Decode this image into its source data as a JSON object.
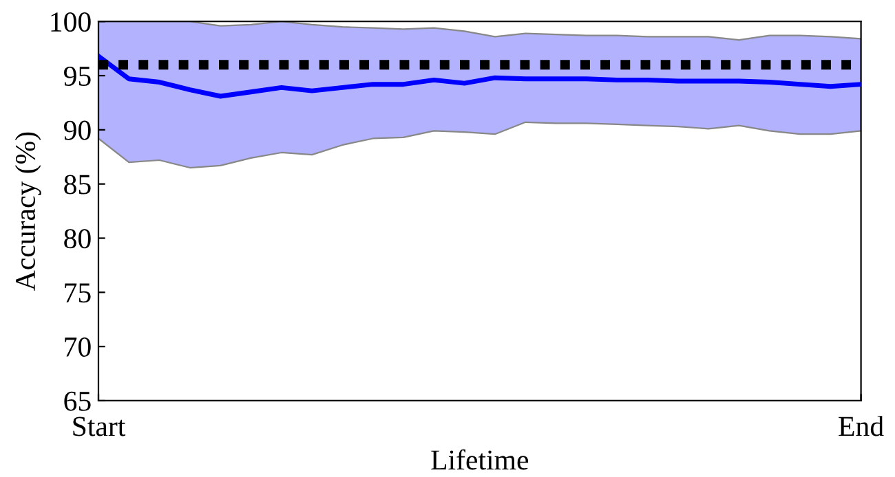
{
  "chart_data": {
    "type": "line",
    "xlabel": "Lifetime",
    "ylabel": "Accuracy (%)",
    "categories": [
      "Start",
      null,
      null,
      null,
      null,
      null,
      null,
      null,
      null,
      null,
      null,
      null,
      null,
      null,
      null,
      null,
      null,
      null,
      null,
      null,
      null,
      null,
      null,
      null,
      null,
      "End"
    ],
    "series": [
      {
        "color": "#0000ff",
        "values": [
          96.8,
          94.7,
          94.4,
          93.7,
          93.1,
          93.5,
          93.9,
          93.6,
          93.9,
          94.2,
          94.2,
          94.6,
          94.3,
          94.8,
          94.7,
          94.7,
          94.7,
          94.6,
          94.6,
          94.5,
          94.5,
          94.5,
          94.4,
          94.2,
          94.0,
          94.2
        ],
        "upper": [
          100,
          100,
          100,
          100,
          99.6,
          99.7,
          100,
          99.7,
          99.5,
          99.4,
          99.3,
          99.4,
          99.1,
          98.6,
          98.9,
          98.8,
          98.7,
          98.7,
          98.6,
          98.6,
          98.6,
          98.3,
          98.7,
          98.7,
          98.6,
          98.4
        ],
        "lower": [
          89.2,
          87.0,
          87.2,
          86.5,
          86.7,
          87.4,
          87.9,
          87.7,
          88.6,
          89.2,
          89.3,
          89.9,
          89.8,
          89.6,
          90.7,
          90.6,
          90.6,
          90.5,
          90.4,
          90.3,
          90.1,
          90.4,
          89.9,
          89.6,
          89.6,
          89.9
        ]
      }
    ],
    "ref_lines": [
      {
        "axis": "y",
        "value": 96,
        "color": "#000000",
        "line_style": "dotted"
      }
    ],
    "ylim": [
      65,
      100
    ],
    "yticks": [
      65,
      70,
      75,
      80,
      85,
      90,
      95,
      100
    ],
    "grid": false,
    "legend": false,
    "marker": "none",
    "line_style": "solid"
  }
}
